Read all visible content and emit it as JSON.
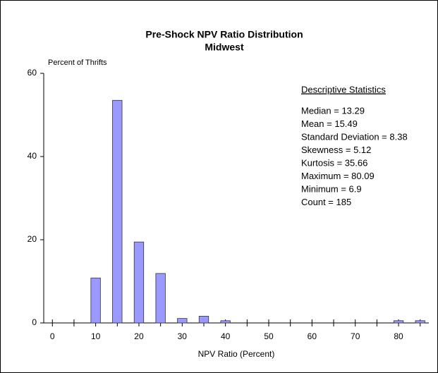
{
  "chart_data": {
    "type": "bar",
    "title": "Pre-Shock NPV Ratio Distribution",
    "subtitle": "Midwest",
    "y_label": "Percent of Thrifts",
    "x_label": "NPV Ratio (Percent)",
    "x": [
      10,
      15,
      20,
      25,
      30,
      35,
      40,
      80,
      85
    ],
    "values": [
      10.81,
      53.51,
      19.46,
      11.89,
      1.08,
      1.62,
      0.54,
      0.54,
      0.54
    ],
    "color": "#9999ff",
    "xlim": [
      -2,
      87
    ],
    "ylim": [
      0,
      60
    ],
    "xticks": [
      0,
      10,
      20,
      30,
      40,
      50,
      60,
      70,
      80
    ],
    "xminorticks": [
      5,
      15,
      25,
      35,
      45,
      55,
      65,
      75,
      85
    ],
    "yticks": [
      0,
      20,
      40,
      60
    ],
    "stats_heading": "Descriptive Statistics",
    "stats": [
      "Median = 13.29",
      "Mean = 15.49",
      "Standard Deviation = 8.38",
      "Skewness = 5.12",
      "Kurtosis = 35.66",
      "Maximum = 80.09",
      "Minimum = 6.9",
      "Count = 185"
    ]
  }
}
